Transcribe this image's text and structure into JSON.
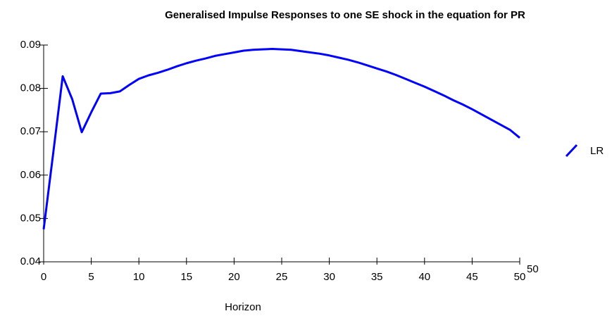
{
  "chart_data": {
    "type": "line",
    "title": "Generalised Impulse Responses to one SE shock in the equation for PR",
    "x_label": "Horizon",
    "x_end_label": "50",
    "x": [
      0,
      1,
      2,
      3,
      4,
      5,
      6,
      7,
      8,
      9,
      10,
      11,
      12,
      13,
      14,
      15,
      16,
      17,
      18,
      19,
      20,
      21,
      22,
      23,
      24,
      25,
      26,
      27,
      28,
      29,
      30,
      31,
      32,
      33,
      34,
      35,
      36,
      37,
      38,
      39,
      40,
      41,
      42,
      43,
      44,
      45,
      46,
      47,
      48,
      49,
      50
    ],
    "series": [
      {
        "name": "LR",
        "color": "#0000ff",
        "values": [
          0.0475,
          0.065,
          0.0828,
          0.0775,
          0.0699,
          0.0745,
          0.0788,
          0.0789,
          0.0793,
          0.0808,
          0.0822,
          0.083,
          0.0836,
          0.0843,
          0.0851,
          0.0858,
          0.0864,
          0.0869,
          0.0875,
          0.0879,
          0.0883,
          0.0887,
          0.0889,
          0.089,
          0.0891,
          0.089,
          0.0889,
          0.0886,
          0.0883,
          0.088,
          0.0876,
          0.0871,
          0.0866,
          0.086,
          0.0853,
          0.0846,
          0.0839,
          0.0831,
          0.0822,
          0.0813,
          0.0804,
          0.0794,
          0.0784,
          0.0773,
          0.0763,
          0.0752,
          0.074,
          0.0728,
          0.0716,
          0.0704,
          0.0686
        ]
      }
    ],
    "xlim": [
      0,
      50
    ],
    "xticks": [
      0,
      5,
      10,
      15,
      20,
      25,
      30,
      35,
      40,
      45,
      50
    ],
    "ylim": [
      0.04,
      0.09
    ],
    "yticks": [
      0.04,
      0.05,
      0.06,
      0.07,
      0.08,
      0.09
    ],
    "grid": false,
    "legend": "right"
  }
}
